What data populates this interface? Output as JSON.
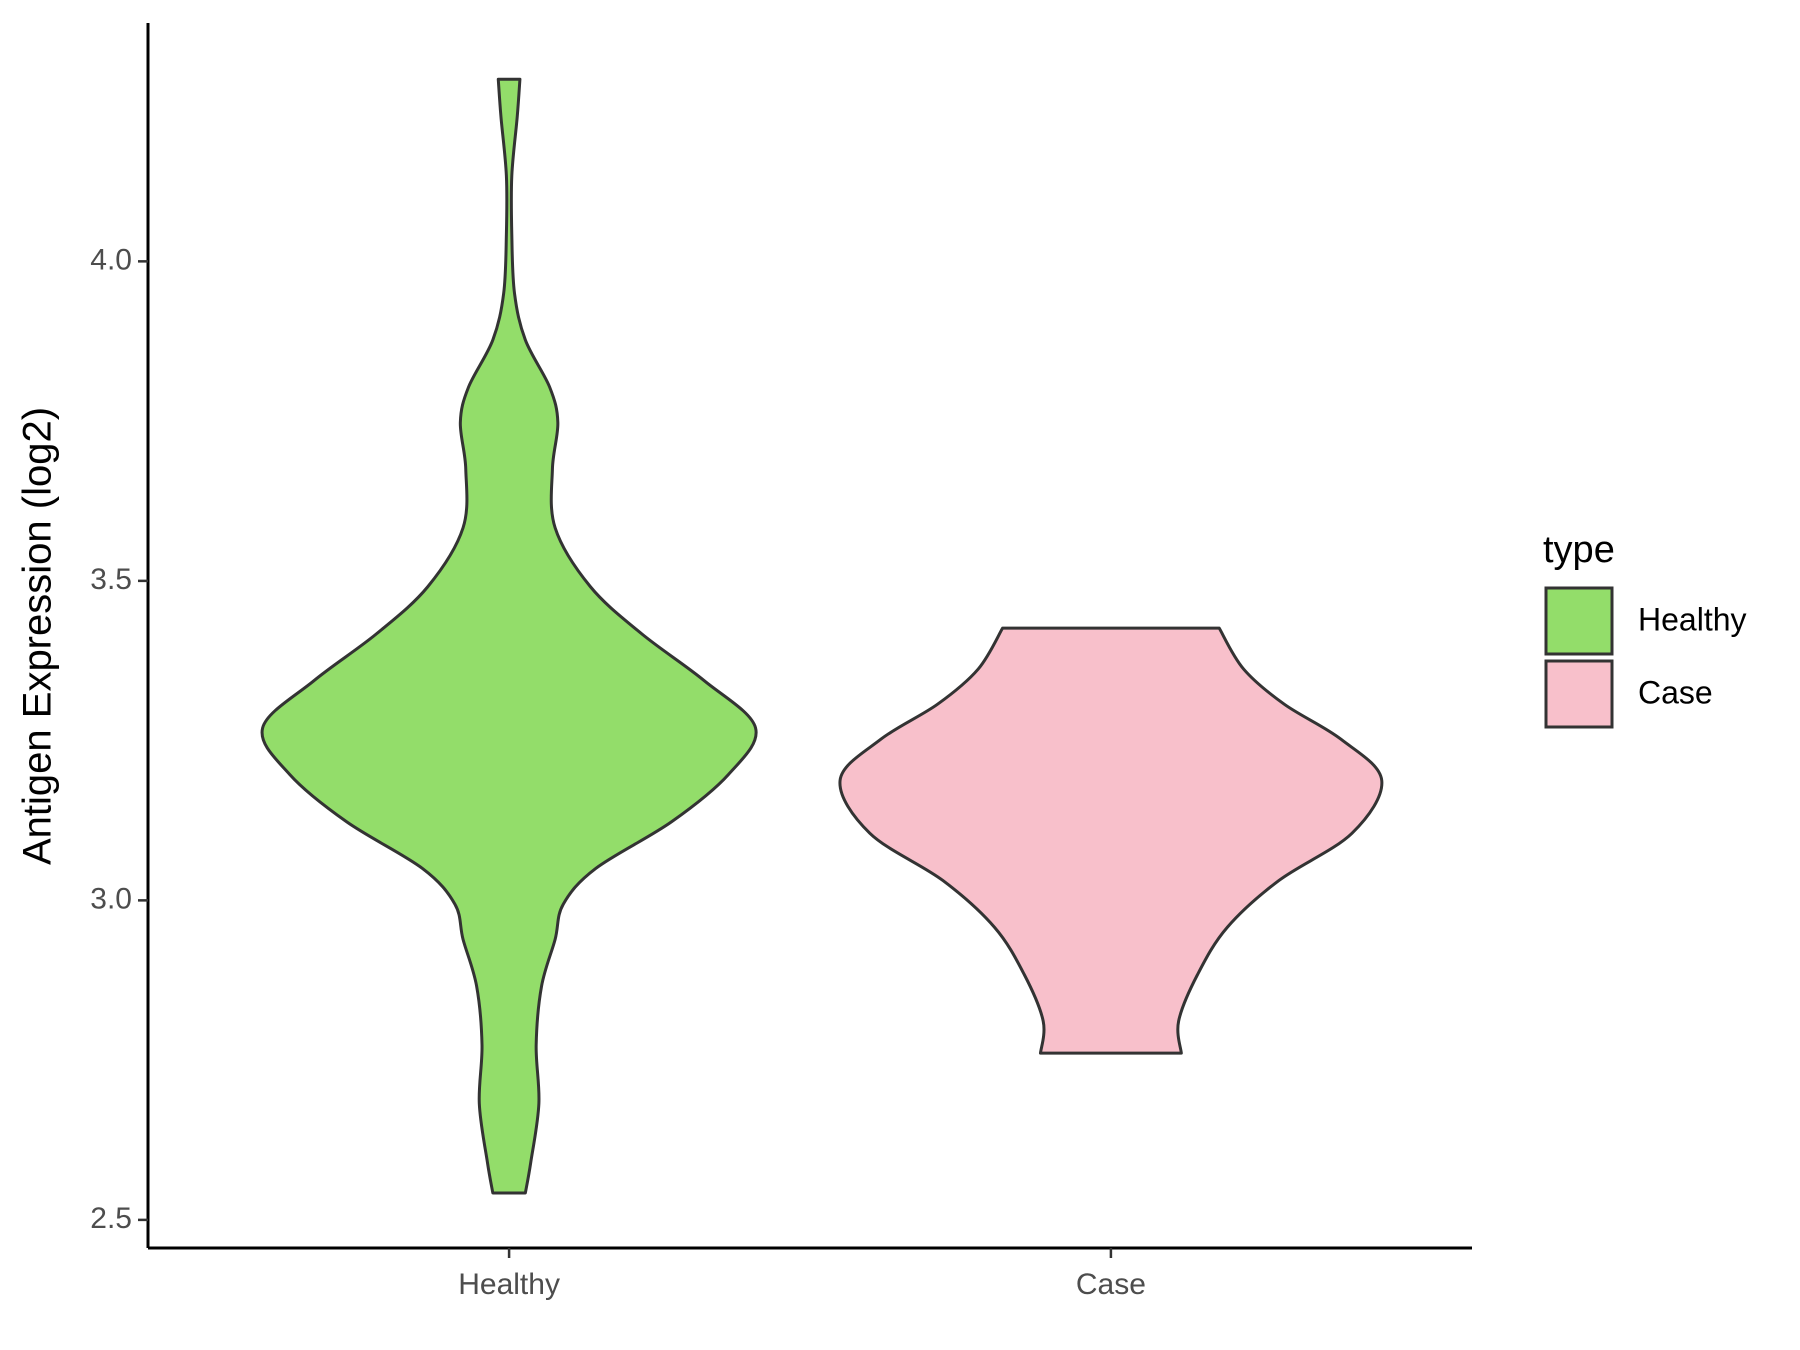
{
  "chart_data": {
    "type": "violin",
    "y_label": "Antigen Expression (log2)",
    "categories": [
      "Healthy",
      "Case"
    ],
    "ylim": [
      2.456,
      4.373
    ],
    "yticks": [
      {
        "value": 2.5,
        "label": "2.5"
      },
      {
        "value": 3,
        "label": "3.0"
      },
      {
        "value": 3.5,
        "label": "3.5"
      },
      {
        "value": 4,
        "label": "4.0"
      }
    ],
    "legend_title": "type",
    "legend": "right",
    "outline_color": "#333333",
    "series": [
      {
        "name": "Healthy",
        "color": "#93dd6a",
        "y": [
          2.542,
          2.59,
          2.682,
          2.774,
          2.866,
          2.939,
          2.994,
          3.05,
          3.123,
          3.197,
          3.27,
          3.344,
          3.417,
          3.491,
          3.583,
          3.675,
          3.748,
          3.803,
          3.877,
          3.95,
          4.042,
          4.134,
          4.226,
          4.285
        ],
        "widths": [
          0.06,
          0.08,
          0.11,
          0.1,
          0.12,
          0.17,
          0.2,
          0.32,
          0.6,
          0.81,
          0.91,
          0.72,
          0.49,
          0.3,
          0.17,
          0.16,
          0.18,
          0.15,
          0.06,
          0.02,
          0.01,
          0.01,
          0.03,
          0.04
        ]
      },
      {
        "name": "Case",
        "color": "#f8c0cb",
        "y": [
          2.761,
          2.811,
          2.884,
          2.958,
          3.031,
          3.105,
          3.188,
          3.252,
          3.307,
          3.362,
          3.426
        ],
        "widths": [
          0.26,
          0.25,
          0.32,
          0.43,
          0.62,
          0.89,
          1.0,
          0.85,
          0.64,
          0.49,
          0.4
        ]
      }
    ]
  }
}
